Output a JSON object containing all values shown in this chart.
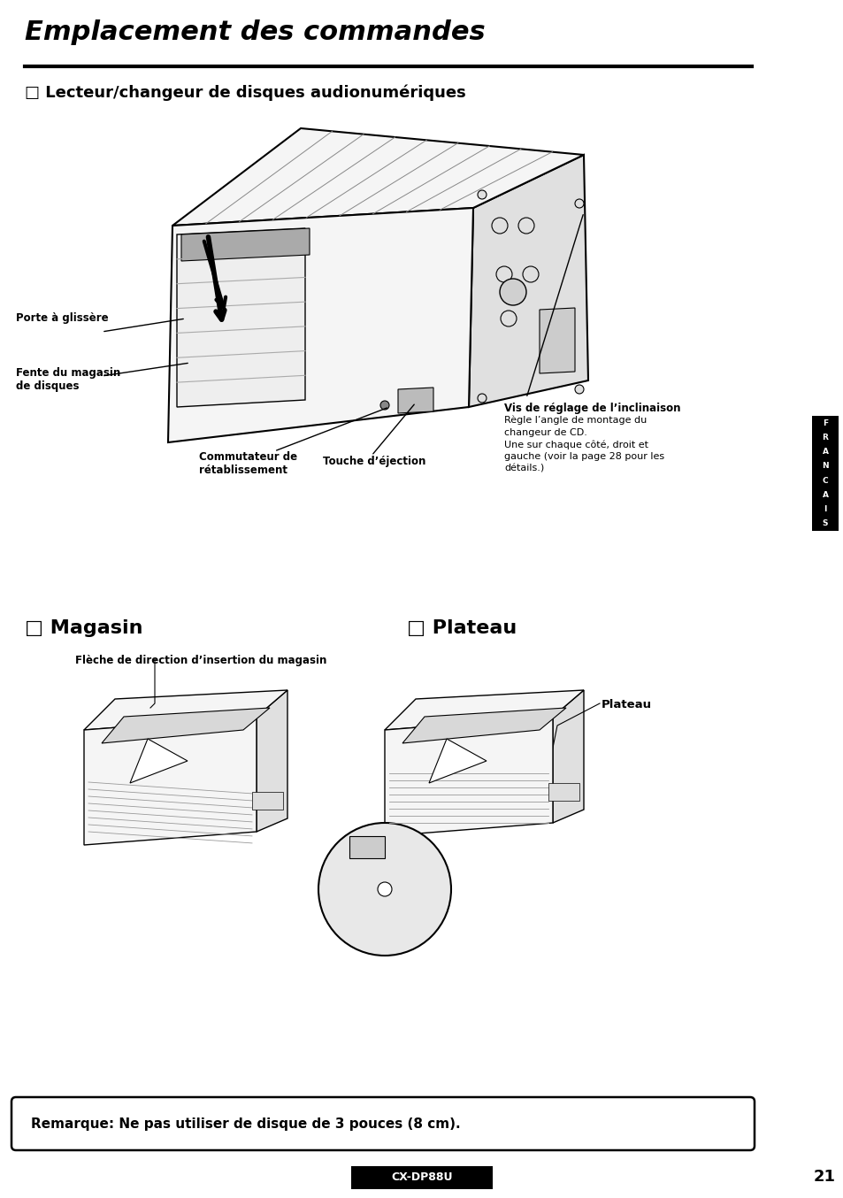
{
  "title": "Emplacement des commandes",
  "subtitle": "□ Lecteur/changeur de disques audionumériques",
  "section_magasin": "□ Magasin",
  "section_plateau": "□ Plateau",
  "label_porte": "Porte à glissère",
  "label_fente": "Fente du magasin\nde disques",
  "label_commutateur": "Commutateur de\nrétablissement",
  "label_touche": "Touche d’éjection",
  "label_vis": "Vis de réglage de l’inclinaison",
  "label_vis_detail": "Règle l’angle de montage du\nchangeur de CD.\nUne sur chaque côté, droit et\ngauche (voir la page 28 pour les\ndétails.)",
  "label_fleche": "Flèche de direction d’insertion du magasin",
  "label_plateau_img": "Plateau",
  "remarque": "Remarque: Ne pas utiliser de disque de 3 pouces (8 cm).",
  "model": "CX-DP88U",
  "page_num": "21",
  "bg_color": "#ffffff",
  "text_color": "#000000",
  "sidebar_bg": "#000000",
  "sidebar_fg": "#ffffff",
  "sidebar_letters": [
    "F",
    "R",
    "A",
    "N",
    "C",
    "A",
    "I",
    "S"
  ],
  "title_fontsize": 22,
  "subtitle_fontsize": 13,
  "section_fontsize": 16,
  "label_fontsize": 8.5,
  "label_bold_fontsize": 8.5,
  "remarque_fontsize": 11
}
